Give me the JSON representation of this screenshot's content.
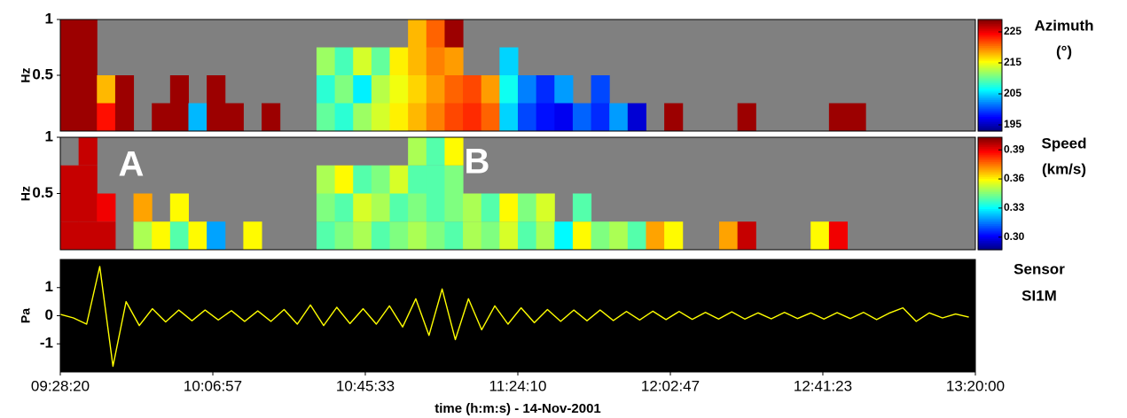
{
  "chart_data": [
    {
      "type": "heatmap",
      "y_label": "Hz",
      "ylim": [
        0,
        1
      ],
      "yticks": [
        0.5,
        1
      ],
      "xlim": [
        34100,
        48000
      ],
      "ybins": [
        0,
        0.25,
        0.5,
        0.75,
        1
      ],
      "x": [
        34100,
        34378,
        34656,
        34934,
        35212,
        35490,
        35768,
        36046,
        36324,
        36602,
        36880,
        37158,
        37436,
        37714,
        37992,
        38270,
        38548,
        38826,
        39104,
        39382,
        39660,
        39938,
        40216,
        40494,
        40772,
        41050,
        41328,
        41606,
        41884,
        42162,
        42440,
        42718,
        42996,
        43274,
        43552,
        43830,
        44108,
        44386,
        44664,
        44942,
        45220,
        45498,
        45776,
        46054,
        46332,
        46610,
        46888,
        47166,
        47444,
        47722
      ],
      "z": [
        [
          228,
          228,
          224,
          228,
          null,
          228,
          228,
          204,
          228,
          228,
          null,
          228,
          null,
          null,
          210,
          208,
          212,
          214,
          216,
          218,
          220,
          222,
          223,
          221,
          205,
          200,
          198,
          197,
          201,
          199,
          203,
          196,
          null,
          228,
          null,
          null,
          null,
          228,
          null,
          null,
          null,
          null,
          228,
          228,
          null,
          null,
          null,
          null,
          null,
          null
        ],
        [
          228,
          228,
          218,
          228,
          null,
          null,
          228,
          null,
          228,
          null,
          null,
          null,
          null,
          null,
          208,
          211,
          206,
          213,
          215,
          217,
          219,
          221,
          222,
          219,
          207,
          202,
          199,
          203,
          null,
          200,
          null,
          null,
          null,
          null,
          null,
          null,
          null,
          null,
          null,
          null,
          null,
          null,
          null,
          null,
          null,
          null,
          null,
          null,
          null,
          null
        ],
        [
          228,
          228,
          null,
          null,
          null,
          null,
          null,
          null,
          null,
          null,
          null,
          null,
          null,
          null,
          212,
          209,
          214,
          210,
          216,
          218,
          220,
          219,
          null,
          null,
          205,
          null,
          null,
          null,
          null,
          null,
          null,
          null,
          null,
          null,
          null,
          null,
          null,
          null,
          null,
          null,
          null,
          null,
          null,
          null,
          null,
          null,
          null,
          null,
          null,
          null
        ],
        [
          228,
          228,
          null,
          null,
          null,
          null,
          null,
          null,
          null,
          null,
          null,
          null,
          null,
          null,
          null,
          null,
          null,
          null,
          null,
          218,
          221,
          228,
          null,
          null,
          null,
          null,
          null,
          null,
          null,
          null,
          null,
          null,
          null,
          null,
          null,
          null,
          null,
          null,
          null,
          null,
          null,
          null,
          null,
          null,
          null,
          null,
          null,
          null,
          null,
          null
        ]
      ],
      "colorbar_title": [
        "Azimuth",
        "(°)"
      ],
      "clim": [
        193,
        229
      ],
      "cticks": [
        195,
        205,
        215,
        225
      ],
      "colormap": "jet",
      "background": "#808080"
    },
    {
      "type": "heatmap",
      "y_label": "Hz",
      "ylim": [
        0,
        1
      ],
      "yticks": [
        0.5,
        1
      ],
      "xlim": [
        34100,
        48000
      ],
      "ybins": [
        0,
        0.25,
        0.5,
        0.75,
        1
      ],
      "x": [
        34100,
        34378,
        34656,
        34934,
        35212,
        35490,
        35768,
        36046,
        36324,
        36602,
        36880,
        37158,
        37436,
        37714,
        37992,
        38270,
        38548,
        38826,
        39104,
        39382,
        39660,
        39938,
        40216,
        40494,
        40772,
        41050,
        41328,
        41606,
        41884,
        42162,
        42440,
        42718,
        42996,
        43274,
        43552,
        43830,
        44108,
        44386,
        44664,
        44942,
        45220,
        45498,
        45776,
        46054,
        46332,
        46610,
        46888,
        47166,
        47444,
        47722
      ],
      "z": [
        [
          0.395,
          0.395,
          0.395,
          null,
          0.35,
          0.36,
          0.34,
          0.36,
          0.32,
          null,
          0.36,
          null,
          null,
          null,
          0.34,
          0.345,
          0.35,
          0.34,
          0.345,
          0.35,
          0.345,
          0.34,
          0.35,
          0.345,
          0.355,
          0.34,
          0.35,
          0.33,
          0.36,
          0.345,
          0.35,
          0.34,
          0.37,
          0.36,
          null,
          null,
          0.37,
          0.395,
          null,
          null,
          null,
          0.36,
          0.39,
          null,
          null,
          null,
          null,
          null,
          null,
          null
        ],
        [
          0.395,
          0.395,
          0.39,
          null,
          0.37,
          null,
          0.36,
          null,
          null,
          null,
          null,
          null,
          null,
          null,
          0.345,
          0.34,
          0.355,
          0.35,
          0.34,
          0.345,
          0.34,
          0.345,
          0.35,
          0.34,
          0.36,
          0.345,
          0.355,
          null,
          0.34,
          null,
          null,
          null,
          null,
          null,
          null,
          null,
          null,
          null,
          null,
          null,
          null,
          null,
          null,
          null,
          null,
          null,
          null,
          null,
          null,
          null
        ],
        [
          0.395,
          0.395,
          null,
          null,
          null,
          null,
          null,
          null,
          null,
          null,
          null,
          null,
          null,
          null,
          0.35,
          0.36,
          0.34,
          0.345,
          0.355,
          0.34,
          0.34,
          0.345,
          null,
          null,
          null,
          null,
          null,
          null,
          null,
          null,
          null,
          null,
          null,
          null,
          null,
          null,
          null,
          null,
          null,
          null,
          null,
          null,
          null,
          null,
          null,
          null,
          null,
          null,
          null,
          null
        ],
        [
          null,
          0.395,
          null,
          null,
          null,
          null,
          null,
          null,
          null,
          null,
          null,
          null,
          null,
          null,
          null,
          null,
          null,
          null,
          null,
          0.35,
          0.34,
          0.36,
          null,
          null,
          null,
          null,
          null,
          null,
          null,
          null,
          null,
          null,
          null,
          null,
          null,
          null,
          null,
          null,
          null,
          null,
          null,
          null,
          null,
          null,
          null,
          null,
          null,
          null,
          null,
          null
        ]
      ],
      "annotations": [
        "A",
        "B"
      ],
      "colorbar_title": [
        "Speed",
        "(km/s)"
      ],
      "clim": [
        0.287,
        0.403
      ],
      "cticks": [
        {
          "value": 0.3,
          "label": "0.30"
        },
        0.33,
        0.36,
        0.39
      ],
      "colormap": "jet",
      "background": "#808080"
    },
    {
      "type": "line",
      "title": [
        "Sensor",
        "SI1M"
      ],
      "y_label": "Pa",
      "x_label": "time (h:m:s) - 14-Nov-2001",
      "color": "#ffff00",
      "background": "#000000",
      "ylim": [
        -2,
        2
      ],
      "yticks": [
        -1,
        0,
        1
      ],
      "xlim": [
        34100,
        48000
      ],
      "xticks": [
        {
          "value": 34100,
          "label": "09:28:20"
        },
        {
          "value": 36417,
          "label": "10:06:57"
        },
        {
          "value": 38733,
          "label": "10:45:33"
        },
        {
          "value": 41050,
          "label": "11:24:10"
        },
        {
          "value": 43367,
          "label": "12:02:47"
        },
        {
          "value": 45683,
          "label": "12:41:23"
        },
        {
          "value": 48000,
          "label": "13:20:00"
        }
      ],
      "x": [
        34100,
        34300,
        34500,
        34700,
        34900,
        35100,
        35300,
        35500,
        35700,
        35900,
        36100,
        36300,
        36500,
        36700,
        36900,
        37100,
        37300,
        37500,
        37700,
        37900,
        38100,
        38300,
        38500,
        38700,
        38900,
        39100,
        39300,
        39500,
        39700,
        39900,
        40100,
        40300,
        40500,
        40700,
        40900,
        41100,
        41300,
        41500,
        41700,
        41900,
        42100,
        42300,
        42500,
        42700,
        42900,
        43100,
        43300,
        43500,
        43700,
        43900,
        44100,
        44300,
        44500,
        44700,
        44900,
        45100,
        45300,
        45500,
        45700,
        45900,
        46100,
        46300,
        46500,
        46700,
        46900,
        47100,
        47300,
        47500,
        47700,
        47900
      ],
      "values": [
        0.05,
        -0.08,
        -0.3,
        1.75,
        -1.8,
        0.5,
        -0.35,
        0.25,
        -0.22,
        0.2,
        -0.18,
        0.2,
        -0.15,
        0.18,
        -0.2,
        0.17,
        -0.2,
        0.22,
        -0.3,
        0.38,
        -0.35,
        0.3,
        -0.28,
        0.25,
        -0.3,
        0.35,
        -0.4,
        0.6,
        -0.7,
        0.95,
        -0.85,
        0.6,
        -0.5,
        0.35,
        -0.3,
        0.28,
        -0.25,
        0.22,
        -0.2,
        0.2,
        -0.18,
        0.2,
        -0.17,
        0.15,
        -0.15,
        0.16,
        -0.14,
        0.15,
        -0.13,
        0.12,
        -0.12,
        0.14,
        -0.12,
        0.1,
        -0.11,
        0.12,
        -0.1,
        0.1,
        -0.12,
        0.11,
        -0.1,
        0.12,
        -0.14,
        0.1,
        0.28,
        -0.2,
        0.1,
        -0.08,
        0.06,
        -0.05
      ]
    }
  ]
}
